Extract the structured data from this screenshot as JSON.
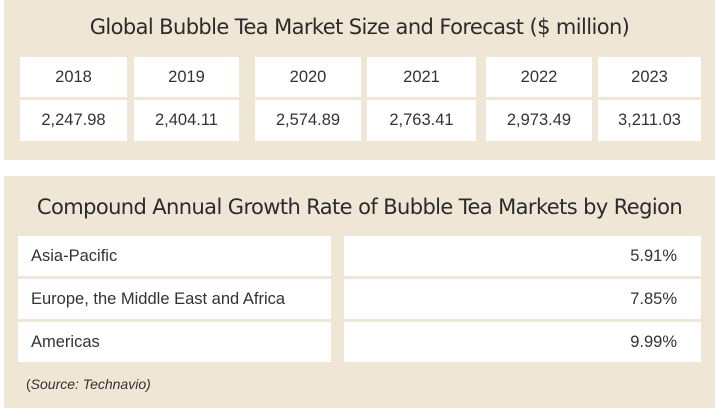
{
  "market": {
    "title": "Global Bubble Tea Market Size and Forecast ($ million)",
    "years": [
      "2018",
      "2019",
      "2020",
      "2021",
      "2022",
      "2023"
    ],
    "values": [
      "2,247.98",
      "2,404.11",
      "2,574.89",
      "2,763.41",
      "2,973.49",
      "3,211.03"
    ]
  },
  "cagr": {
    "title": "Compound Annual Growth Rate of Bubble Tea Markets by Region",
    "rows": [
      {
        "region": "Asia-Pacific",
        "rate": "5.91%"
      },
      {
        "region": "Europe, the Middle East and Africa",
        "rate": "7.85%"
      },
      {
        "region": "Americas",
        "rate": "9.99%"
      }
    ]
  },
  "source": {
    "paren_open": "(",
    "text": "Source: Technavio)"
  },
  "colors": {
    "panel_background": "#efe6d5",
    "cell_background": "#ffffff",
    "text": "#333333"
  },
  "chart_data": [
    {
      "type": "table",
      "title": "Global Bubble Tea Market Size and Forecast ($ million)",
      "columns": [
        "2018",
        "2019",
        "2020",
        "2021",
        "2022",
        "2023"
      ],
      "rows": [
        [
          2247.98,
          2404.11,
          2574.89,
          2763.41,
          2973.49,
          3211.03
        ]
      ]
    },
    {
      "type": "table",
      "title": "Compound Annual Growth Rate of Bubble Tea Markets by Region",
      "rows": [
        [
          "Asia-Pacific",
          5.91
        ],
        [
          "Europe, the Middle East and Africa",
          7.85
        ],
        [
          "Americas",
          9.99
        ]
      ]
    }
  ]
}
